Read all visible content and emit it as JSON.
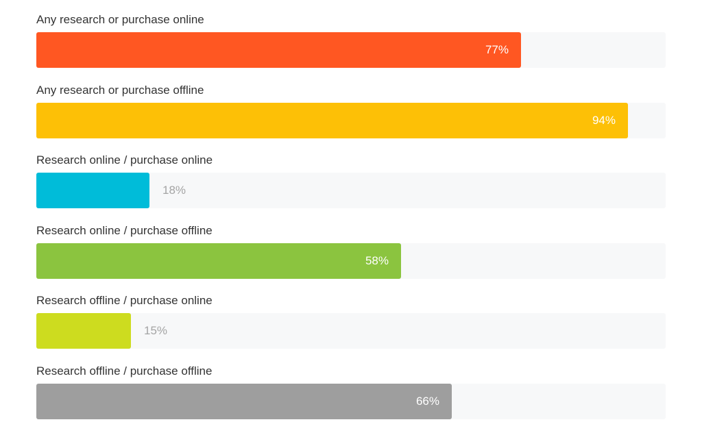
{
  "chart_data": {
    "type": "bar",
    "orientation": "horizontal",
    "xlim": [
      0,
      100
    ],
    "value_suffix": "%",
    "categories": [
      "Any research or purchase online",
      "Any research or purchase offline",
      "Research online / purchase online",
      "Research online / purchase offline",
      "Research offline / purchase online",
      "Research offline / purchase offline"
    ],
    "values": [
      77,
      94,
      18,
      58,
      15,
      66
    ],
    "value_labels": [
      "77%",
      "94%",
      "18%",
      "58%",
      "15%",
      "66%"
    ],
    "colors": [
      "#ff5722",
      "#fdc006",
      "#00bcd9",
      "#8bc43f",
      "#cddc1f",
      "#9e9e9e"
    ],
    "track_color": "#f7f8f9"
  }
}
